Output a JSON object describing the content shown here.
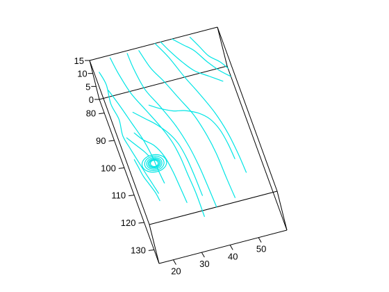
{
  "chart_data": {
    "type": "line",
    "title": "",
    "xlabel": "",
    "ylabel": "",
    "zlabel": "",
    "grid": false,
    "line_color": "#00e5e5",
    "axis_color": "#000000",
    "axes": {
      "x": {
        "range": [
          15,
          60
        ],
        "ticks": [
          20,
          30,
          40,
          50
        ],
        "tick_labels": [
          "20",
          "30",
          "40",
          "50"
        ]
      },
      "y": {
        "range": [
          75,
          135
        ],
        "ticks": [
          80,
          90,
          100,
          110,
          120,
          130
        ],
        "tick_labels": [
          "80",
          "90",
          "100",
          "110",
          "120",
          "130"
        ]
      },
      "z": {
        "range": [
          0,
          15
        ],
        "ticks": [
          0,
          5,
          10,
          15
        ],
        "tick_labels": [
          "0",
          "5",
          "10",
          "15"
        ]
      }
    },
    "series": [
      {
        "points": [
          [
            17,
            77,
            12
          ],
          [
            18,
            80,
            10
          ],
          [
            17.5,
            84,
            7
          ],
          [
            18.5,
            88,
            5
          ],
          [
            18,
            92,
            3
          ],
          [
            19,
            96,
            2
          ],
          [
            20,
            100,
            1.5
          ],
          [
            21,
            104,
            1
          ],
          [
            22,
            108,
            0.8
          ],
          [
            23,
            112,
            0.5
          ]
        ]
      },
      {
        "points": [
          [
            18,
            82,
            10
          ],
          [
            20,
            86,
            8
          ],
          [
            22,
            91,
            6
          ],
          [
            24,
            96,
            4
          ],
          [
            25,
            101,
            3
          ],
          [
            25.5,
            106,
            2
          ],
          [
            26,
            110,
            1.5
          ]
        ]
      },
      {
        "points": [
          [
            22,
            75,
            14
          ],
          [
            23,
            79,
            12
          ],
          [
            25,
            84,
            9
          ],
          [
            28,
            89,
            7
          ],
          [
            31,
            94,
            5
          ],
          [
            33,
            99,
            4
          ],
          [
            34,
            104,
            3
          ],
          [
            34.5,
            110,
            2
          ],
          [
            35,
            116,
            1.2
          ],
          [
            35,
            124,
            0.8
          ]
        ]
      },
      {
        "points": [
          [
            28,
            75,
            14
          ],
          [
            28.5,
            79,
            12
          ],
          [
            30,
            84,
            9
          ],
          [
            33,
            89,
            7
          ],
          [
            36,
            95,
            5
          ],
          [
            38,
            101,
            3
          ],
          [
            39,
            107,
            2
          ],
          [
            39.5,
            113,
            1.5
          ],
          [
            40,
            122,
            1
          ]
        ]
      },
      {
        "points": [
          [
            32,
            76,
            15
          ],
          [
            34,
            80,
            12
          ],
          [
            37,
            84,
            10
          ],
          [
            40,
            89,
            8
          ],
          [
            43,
            94,
            6
          ],
          [
            45,
            100,
            4
          ],
          [
            46,
            106,
            3
          ],
          [
            46.5,
            114,
            2
          ],
          [
            47,
            121,
            1.5
          ]
        ]
      },
      {
        "points": [
          [
            38,
            75,
            15
          ],
          [
            41,
            79,
            13
          ],
          [
            44,
            84,
            10
          ],
          [
            47,
            89,
            8
          ],
          [
            50,
            95,
            6
          ],
          [
            52,
            101,
            4
          ],
          [
            53,
            108,
            3
          ],
          [
            53.5,
            114,
            2
          ]
        ]
      },
      {
        "points": [
          [
            40,
            75,
            15
          ],
          [
            42,
            78,
            14
          ],
          [
            45,
            81,
            12
          ],
          [
            48,
            84,
            11
          ],
          [
            52,
            86,
            10
          ],
          [
            56,
            88,
            9
          ]
        ]
      },
      {
        "points": [
          [
            44,
            75,
            15
          ],
          [
            47,
            77,
            14
          ],
          [
            50,
            79,
            13
          ],
          [
            53,
            83,
            12
          ],
          [
            56,
            86,
            11
          ],
          [
            59,
            88,
            10
          ]
        ]
      },
      {
        "points": [
          [
            50,
            76,
            15
          ],
          [
            52,
            79,
            14
          ],
          [
            54,
            82,
            13
          ],
          [
            57,
            84,
            12
          ],
          [
            59,
            86,
            11
          ]
        ]
      },
      {
        "points": [
          [
            30,
            84,
            3
          ],
          [
            33,
            86,
            3
          ],
          [
            37,
            88,
            3
          ],
          [
            41,
            89,
            3
          ],
          [
            45,
            91,
            3
          ],
          [
            48,
            94,
            3
          ],
          [
            50,
            98,
            2.5
          ],
          [
            51,
            103,
            2
          ],
          [
            51.5,
            108,
            1.5
          ]
        ]
      },
      {
        "points": [
          [
            24,
            85,
            3
          ],
          [
            27,
            88,
            3
          ],
          [
            30,
            91,
            3
          ],
          [
            33,
            95,
            3
          ],
          [
            35,
            99,
            2.5
          ],
          [
            36,
            104,
            2
          ],
          [
            36.5,
            110,
            1.5
          ],
          [
            36.8,
            117,
            1
          ]
        ]
      },
      {
        "points": [
          [
            22,
            92,
            3
          ],
          [
            24,
            95,
            3
          ],
          [
            27,
            98,
            3
          ],
          [
            29,
            102,
            2.5
          ],
          [
            30,
            107,
            2
          ],
          [
            30.5,
            112,
            1.5
          ],
          [
            31,
            118,
            1
          ]
        ]
      },
      {
        "points": [
          [
            19,
            93,
            3
          ],
          [
            21,
            96,
            3
          ],
          [
            23,
            99,
            3
          ],
          [
            24,
            101,
            3
          ]
        ]
      },
      {
        "points": [
          [
            19,
            100,
            2
          ],
          [
            19.5,
            103,
            1.8
          ],
          [
            20,
            106,
            1.6
          ],
          [
            21,
            109,
            1.4
          ],
          [
            22,
            112,
            1.2
          ],
          [
            22.5,
            115,
            1
          ]
        ]
      }
    ],
    "vortex": {
      "center": [
        25,
        103,
        2
      ],
      "turns": [
        [
          4.2,
          3.0
        ],
        [
          3.3,
          2.5
        ],
        [
          2.6,
          2.0
        ],
        [
          2.1,
          1.6
        ],
        [
          1.7,
          1.3
        ],
        [
          1.3,
          1.1
        ]
      ]
    }
  }
}
